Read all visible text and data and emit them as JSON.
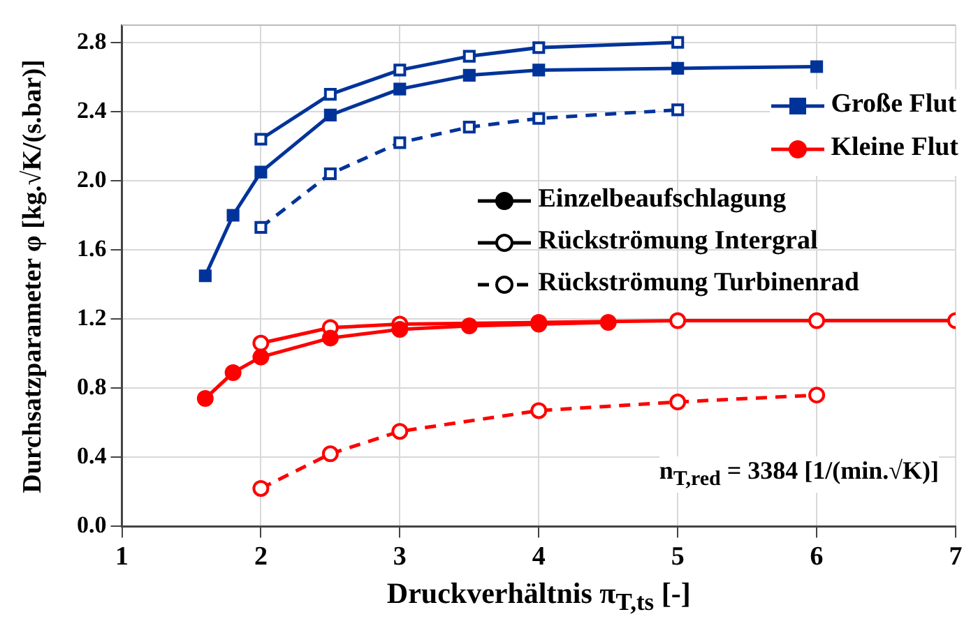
{
  "chart_data": {
    "type": "line",
    "xlabel": "Druckverhältnis π$_{T,ts}$ [-]",
    "ylabel": "Durchsatzparameter φ [kg.√K/(s.bar)]",
    "xlim": [
      1,
      7
    ],
    "xticks": [
      1,
      2,
      3,
      4,
      5,
      6,
      7
    ],
    "ylim": [
      0,
      2.9
    ],
    "yticks": [
      {
        "value": 0,
        "label": "0.0"
      },
      {
        "value": 0.4,
        "label": "0.4"
      },
      {
        "value": 0.8,
        "label": "0.8"
      },
      {
        "value": 1.2,
        "label": "1.2"
      },
      {
        "value": 1.6,
        "label": "1.6"
      },
      {
        "value": 2.0,
        "label": "2.0"
      },
      {
        "value": 2.4,
        "label": "2.4"
      },
      {
        "value": 2.8,
        "label": "2.8"
      }
    ],
    "grid": true,
    "legend": "right",
    "series": [
      {
        "name": "Große Flut",
        "color": "#003399",
        "marker": "square",
        "line_style": "solid",
        "x": [
          1.6,
          1.8,
          2,
          2.5,
          3,
          3.5,
          4,
          5,
          6
        ],
        "values": [
          1.45,
          1.8,
          2.05,
          2.38,
          2.53,
          2.61,
          2.64,
          2.65,
          2.66
        ]
      },
      {
        "color": "#003399",
        "marker": "square",
        "line_style": "solid",
        "x": [
          2,
          2.5,
          3,
          3.5,
          4,
          5
        ],
        "values": [
          2.24,
          2.5,
          2.64,
          2.72,
          2.77,
          2.8
        ]
      },
      {
        "color": "#003399",
        "marker": "square",
        "line_style": "dashed",
        "x": [
          2,
          2.5,
          3,
          3.5,
          4,
          5
        ],
        "values": [
          1.73,
          2.04,
          2.22,
          2.31,
          2.36,
          2.41
        ]
      },
      {
        "name": "Kleine Flut",
        "color": "#ff0000",
        "marker": "circle",
        "line_style": "solid",
        "x": [
          1.6,
          1.8,
          2,
          2.5,
          3,
          3.5,
          4,
          4.5
        ],
        "values": [
          0.74,
          0.89,
          0.98,
          1.09,
          1.14,
          1.16,
          1.17,
          1.18
        ]
      },
      {
        "color": "#ff0000",
        "marker": "circle",
        "line_style": "solid",
        "x": [
          2,
          2.5,
          3,
          4,
          5,
          6,
          7
        ],
        "values": [
          1.06,
          1.15,
          1.17,
          1.18,
          1.19,
          1.19,
          1.19
        ]
      },
      {
        "color": "#ff0000",
        "marker": "circle",
        "line_style": "dashed",
        "x": [
          2,
          2.5,
          3,
          4,
          5,
          6
        ],
        "values": [
          0.22,
          0.42,
          0.55,
          0.67,
          0.72,
          0.76
        ]
      }
    ],
    "annotations": [
      "n$_{T,red}$ = 3384 [1/(min.√K)]",
      "Einzelbeaufschlagung",
      "Rückströmung Intergral",
      "Rückströmung Turbinenrad"
    ]
  }
}
